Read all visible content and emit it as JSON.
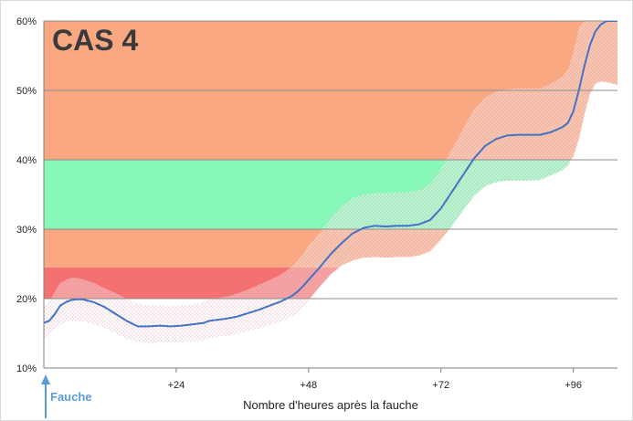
{
  "chart_data": {
    "type": "area",
    "title": "CAS 4",
    "xlabel": "Nombre d'heures après la fauche",
    "ylabel": "",
    "xlim": [
      0,
      104
    ],
    "ylim": [
      10,
      60
    ],
    "x_ticks": [
      {
        "value": 24,
        "label": "+24"
      },
      {
        "value": 48,
        "label": "+48"
      },
      {
        "value": 72,
        "label": "+72"
      },
      {
        "value": 96,
        "label": "+96"
      }
    ],
    "y_ticks": [
      {
        "value": 10,
        "label": "10%"
      },
      {
        "value": 20,
        "label": "20%"
      },
      {
        "value": 30,
        "label": "30%"
      },
      {
        "value": 40,
        "label": "40%"
      },
      {
        "value": 50,
        "label": "50%"
      },
      {
        "value": 60,
        "label": "60%"
      }
    ],
    "zones": [
      {
        "from": 40,
        "to": 60,
        "color": "#f9a882"
      },
      {
        "from": 30,
        "to": 40,
        "color": "#88f8b8"
      },
      {
        "from": 24.5,
        "to": 30,
        "color": "#f9a882"
      },
      {
        "from": 20,
        "to": 24.5,
        "color": "#f57070"
      }
    ],
    "series": [
      {
        "color": "#4472c4",
        "x": [
          0,
          1,
          2,
          3,
          4,
          5,
          6,
          7,
          9,
          11,
          13,
          15,
          17,
          19,
          21,
          23,
          25,
          27,
          29,
          30,
          31,
          33,
          35,
          37,
          39,
          41,
          43,
          45,
          46,
          47,
          48,
          50,
          52,
          54,
          56,
          58,
          60,
          62,
          64,
          66,
          68,
          70,
          72,
          74,
          76,
          78,
          80,
          82,
          84,
          86,
          88,
          90,
          92,
          94,
          95,
          96,
          97,
          98,
          99,
          100,
          101,
          102,
          103,
          104
        ],
        "y": [
          16.5,
          16.8,
          17.8,
          19.0,
          19.5,
          19.8,
          19.9,
          19.9,
          19.5,
          18.8,
          17.8,
          16.8,
          16.0,
          16.0,
          16.1,
          16.0,
          16.1,
          16.3,
          16.5,
          16.8,
          16.9,
          17.1,
          17.4,
          17.9,
          18.4,
          19.0,
          19.6,
          20.4,
          21.0,
          21.8,
          22.7,
          24.5,
          26.4,
          28.0,
          29.4,
          30.2,
          30.5,
          30.4,
          30.5,
          30.5,
          30.7,
          31.3,
          33.0,
          35.4,
          37.8,
          40.2,
          42.0,
          43.0,
          43.5,
          43.6,
          43.6,
          43.6,
          44.0,
          44.7,
          45.3,
          47.0,
          50.0,
          53.5,
          56.5,
          58.5,
          59.5,
          60.0,
          60.0,
          60.0
        ]
      }
    ],
    "band_upper": [
      19.0,
      19.5,
      21.0,
      22.3,
      22.7,
      23.0,
      23.0,
      22.8,
      22.3,
      21.5,
      20.8,
      20.0,
      19.3,
      19.0,
      19.0,
      18.9,
      19.0,
      19.2,
      19.5,
      19.8,
      20.0,
      20.3,
      20.7,
      21.3,
      22.0,
      22.7,
      23.5,
      24.6,
      25.5,
      26.5,
      27.6,
      29.5,
      31.6,
      33.3,
      34.5,
      35.0,
      35.2,
      35.2,
      35.3,
      35.4,
      35.6,
      36.5,
      38.7,
      41.5,
      44.5,
      47.3,
      49.0,
      49.8,
      50.2,
      50.3,
      50.3,
      50.3,
      51.0,
      52.0,
      53.0,
      55.5,
      59.0,
      60.0,
      60.0,
      60.0,
      60.0,
      60.0,
      60.0,
      60.0
    ],
    "band_lower": [
      14.0,
      14.6,
      15.6,
      16.2,
      16.6,
      16.8,
      16.8,
      16.7,
      16.3,
      15.8,
      15.0,
      14.2,
      13.8,
      13.6,
      13.7,
      13.7,
      13.7,
      13.8,
      14.0,
      14.3,
      14.4,
      14.6,
      14.9,
      15.3,
      15.7,
      16.2,
      16.7,
      17.4,
      18.0,
      18.8,
      19.8,
      21.7,
      23.5,
      24.8,
      25.5,
      25.9,
      26.0,
      25.9,
      26.0,
      26.0,
      26.2,
      26.8,
      28.5,
      30.5,
      32.7,
      34.8,
      36.2,
      36.8,
      37.0,
      37.0,
      37.0,
      37.1,
      37.8,
      38.5,
      39.2,
      40.5,
      43.0,
      46.5,
      49.5,
      51.0,
      51.3,
      51.2,
      51.0,
      50.8
    ],
    "grid": true,
    "annotation": {
      "x": 0,
      "label": "Fauche"
    }
  }
}
